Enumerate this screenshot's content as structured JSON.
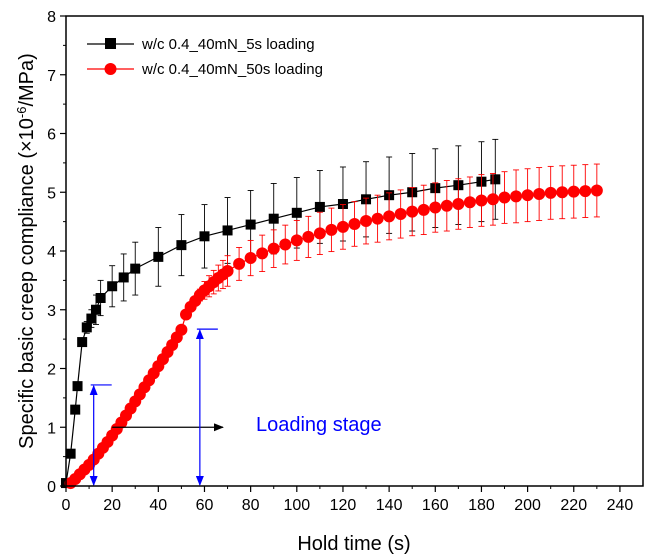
{
  "chart_data": {
    "type": "scatter",
    "xlabel": "Hold time (s)",
    "ylabel": "Specific basic creep compliance (×10^-6/MPa)",
    "ylabel_parts": {
      "prefix": "Specific basic creep compliance (×10",
      "exponent": "-6",
      "suffix": "/MPa)"
    },
    "xlim": [
      0,
      250
    ],
    "ylim": [
      0,
      8
    ],
    "xticks": [
      0,
      20,
      40,
      60,
      80,
      100,
      120,
      140,
      160,
      180,
      200,
      220,
      240
    ],
    "yticks": [
      0,
      1,
      2,
      3,
      4,
      5,
      6,
      7,
      8
    ],
    "x_tick_labels": [
      "0",
      "20",
      "40",
      "60",
      "80",
      "100",
      "120",
      "140",
      "160",
      "180",
      "200",
      "220",
      "240"
    ],
    "y_tick_labels": [
      "0",
      "1",
      "2",
      "3",
      "4",
      "5",
      "6",
      "7",
      "8"
    ],
    "grid": false,
    "legend_position": "top-left",
    "series": [
      {
        "name": "w/c 0.4_40mN_5s loading",
        "color": "#000000",
        "marker": "square",
        "x": [
          0,
          2,
          4,
          5,
          7,
          9,
          11,
          13,
          15,
          20,
          25,
          30,
          40,
          50,
          60,
          70,
          80,
          90,
          100,
          110,
          120,
          130,
          140,
          150,
          160,
          170,
          180,
          186
        ],
        "y": [
          0.05,
          0.55,
          1.3,
          1.7,
          2.45,
          2.7,
          2.85,
          3.0,
          3.2,
          3.4,
          3.55,
          3.7,
          3.9,
          4.1,
          4.25,
          4.35,
          4.45,
          4.55,
          4.65,
          4.75,
          4.8,
          4.88,
          4.95,
          5.0,
          5.07,
          5.12,
          5.18,
          5.22
        ],
        "err": [
          0,
          0,
          0,
          0,
          0.05,
          0.1,
          0.15,
          0.25,
          0.3,
          0.35,
          0.4,
          0.45,
          0.5,
          0.52,
          0.54,
          0.56,
          0.58,
          0.6,
          0.6,
          0.62,
          0.63,
          0.64,
          0.65,
          0.66,
          0.67,
          0.67,
          0.68,
          0.68
        ]
      },
      {
        "name": "w/c 0.4_40mN_50s loading",
        "color": "#ff0000",
        "marker": "circle",
        "x": [
          2,
          4,
          6,
          8,
          10,
          12,
          14,
          16,
          18,
          20,
          22,
          24,
          26,
          28,
          30,
          32,
          34,
          36,
          38,
          40,
          42,
          44,
          46,
          48,
          50,
          52,
          54,
          56,
          58,
          60,
          62,
          64,
          66,
          68,
          70,
          75,
          80,
          85,
          90,
          95,
          100,
          105,
          110,
          115,
          120,
          125,
          130,
          135,
          140,
          145,
          150,
          155,
          160,
          165,
          170,
          175,
          180,
          185,
          190,
          195,
          200,
          205,
          210,
          215,
          220,
          225,
          230
        ],
        "y": [
          0.05,
          0.12,
          0.2,
          0.28,
          0.36,
          0.45,
          0.55,
          0.65,
          0.75,
          0.86,
          0.97,
          1.08,
          1.2,
          1.32,
          1.44,
          1.56,
          1.68,
          1.8,
          1.92,
          2.04,
          2.16,
          2.28,
          2.4,
          2.53,
          2.66,
          2.92,
          3.05,
          3.15,
          3.25,
          3.33,
          3.4,
          3.47,
          3.54,
          3.6,
          3.66,
          3.78,
          3.88,
          3.96,
          4.04,
          4.11,
          4.18,
          4.24,
          4.3,
          4.36,
          4.41,
          4.46,
          4.51,
          4.55,
          4.59,
          4.63,
          4.67,
          4.7,
          4.74,
          4.77,
          4.8,
          4.83,
          4.86,
          4.88,
          4.91,
          4.93,
          4.95,
          4.97,
          4.99,
          5.0,
          5.01,
          5.02,
          5.03
        ],
        "err": [
          0,
          0,
          0,
          0,
          0,
          0,
          0,
          0,
          0,
          0,
          0,
          0,
          0,
          0,
          0,
          0,
          0,
          0,
          0,
          0,
          0,
          0,
          0,
          0,
          0,
          0,
          0,
          0.05,
          0.1,
          0.15,
          0.18,
          0.2,
          0.22,
          0.24,
          0.26,
          0.28,
          0.3,
          0.31,
          0.32,
          0.33,
          0.34,
          0.35,
          0.36,
          0.37,
          0.38,
          0.38,
          0.39,
          0.4,
          0.4,
          0.41,
          0.41,
          0.42,
          0.42,
          0.43,
          0.43,
          0.43,
          0.44,
          0.44,
          0.44,
          0.45,
          0.45,
          0.45,
          0.45,
          0.45,
          0.45,
          0.45,
          0.45
        ]
      }
    ],
    "annotations": {
      "label": "Loading stage",
      "label_color": "#0000ff",
      "horizontal_arrow": {
        "x_from": 20,
        "x_to": 68,
        "y": 1.0,
        "color": "#000000"
      },
      "vertical_markers": [
        {
          "x": 12,
          "y_top": 1.72,
          "color": "#0000ff"
        },
        {
          "x": 58,
          "y_top": 2.67,
          "color": "#0000ff"
        }
      ]
    }
  }
}
